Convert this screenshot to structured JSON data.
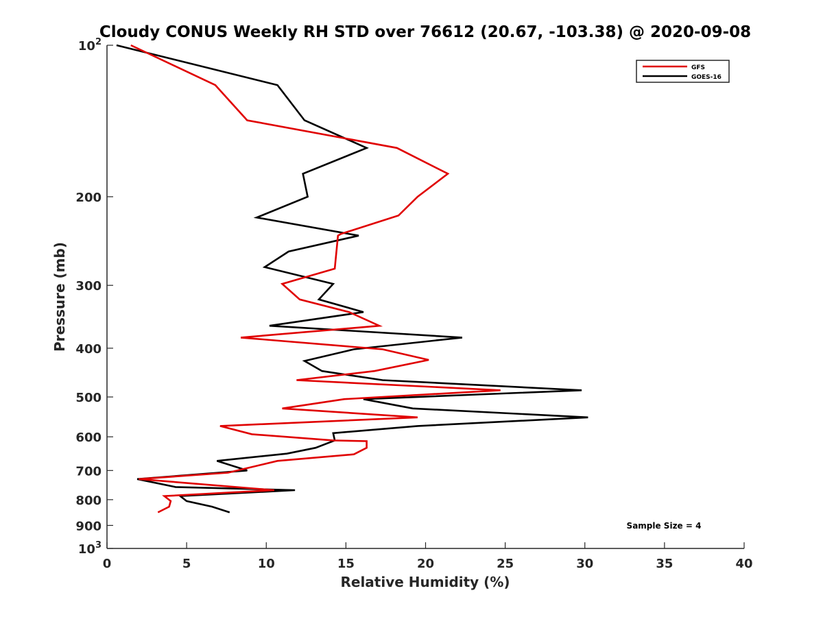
{
  "chart_data": {
    "type": "line",
    "title": "Cloudy CONUS Weekly RH STD over 76612 (20.67, -103.38) @ 2020-09-08",
    "xlabel": "Relative Humidity (%)",
    "ylabel": "Pressure (mb)",
    "xlim": [
      0,
      40
    ],
    "ylim": [
      1000,
      100
    ],
    "yscale": "log",
    "y_reversed": true,
    "grid": false,
    "x_ticks": [
      0,
      5,
      10,
      15,
      20,
      25,
      30,
      35,
      40
    ],
    "x_tick_labels": [
      "0",
      "5",
      "10",
      "15",
      "20",
      "25",
      "30",
      "35",
      "40"
    ],
    "y_ticks": [
      100,
      200,
      300,
      400,
      500,
      600,
      700,
      800,
      900,
      1000
    ],
    "y_tick_labels": [
      {
        "base": "10",
        "exp": "2"
      },
      {
        "base": "200",
        "exp": ""
      },
      {
        "base": "300",
        "exp": ""
      },
      {
        "base": "400",
        "exp": ""
      },
      {
        "base": "500",
        "exp": ""
      },
      {
        "base": "600",
        "exp": ""
      },
      {
        "base": "700",
        "exp": ""
      },
      {
        "base": "800",
        "exp": ""
      },
      {
        "base": "900",
        "exp": ""
      },
      {
        "base": "10",
        "exp": "3"
      }
    ],
    "legend": {
      "placement": "top-right",
      "entries": [
        {
          "name": "GFS",
          "color": "#e00000"
        },
        {
          "name": "GOES-16",
          "color": "#000000"
        }
      ]
    },
    "annotations": [
      {
        "text": "Sample Size = 4",
        "position": "bottom-right"
      }
    ],
    "series": [
      {
        "name": "GFS",
        "color": "#e00000",
        "x": [
          1.5,
          6.8,
          8.8,
          18.2,
          21.4,
          19.5,
          18.3,
          14.7,
          14.5,
          14.3,
          11.0,
          12.1,
          15.2,
          17.1,
          8.4,
          17.3,
          20.2,
          16.8,
          11.9,
          24.7,
          14.9,
          11.0,
          19.5,
          7.1,
          9.1,
          14.2,
          16.3,
          16.3,
          15.5,
          10.7,
          7.6,
          2.0,
          10.5,
          3.6,
          4.0,
          3.9,
          3.2
        ],
        "pressure": [
          100,
          120,
          141,
          160,
          180,
          200,
          218,
          237,
          239,
          278,
          298,
          320,
          339,
          361,
          381,
          402,
          422,
          444,
          463,
          485,
          505,
          527,
          549,
          571,
          593,
          610,
          612,
          631,
          650,
          670,
          707,
          728,
          766,
          787,
          805,
          826,
          848
        ]
      },
      {
        "name": "GOES-16",
        "color": "#000000",
        "x": [
          0.6,
          10.7,
          12.4,
          16.3,
          12.3,
          12.6,
          9.4,
          15.8,
          11.4,
          9.9,
          14.2,
          13.3,
          16.1,
          10.2,
          22.3,
          15.5,
          12.4,
          13.5,
          17.3,
          29.8,
          16.1,
          19.2,
          30.2,
          19.5,
          14.2,
          14.3,
          13.1,
          11.3,
          6.9,
          8.8,
          1.9,
          4.3,
          11.8,
          4.6,
          5.0,
          6.6,
          7.7
        ],
        "pressure": [
          100,
          120,
          141,
          160,
          180,
          200,
          220,
          239,
          257,
          276,
          298,
          320,
          339,
          361,
          381,
          402,
          424,
          444,
          463,
          485,
          505,
          527,
          549,
          571,
          590,
          610,
          631,
          648,
          670,
          700,
          728,
          755,
          766,
          787,
          805,
          826,
          848
        ]
      }
    ]
  }
}
